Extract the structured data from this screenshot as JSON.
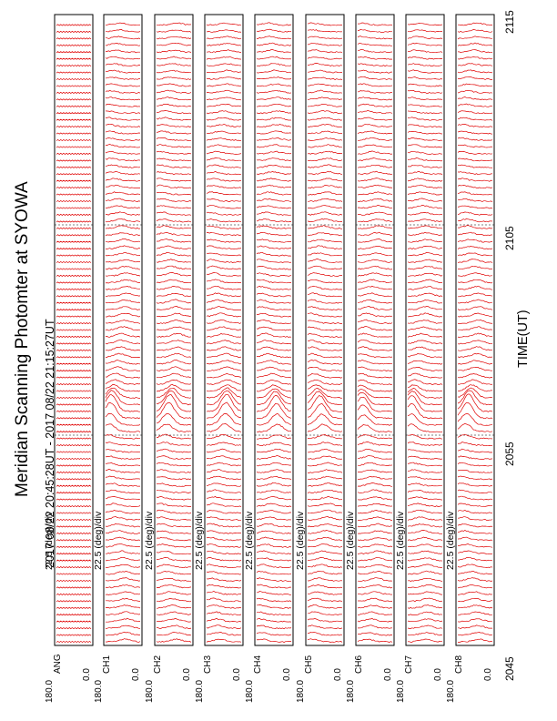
{
  "title": "Meridian Scanning Photomter at SYOWA",
  "subtitle": "2017 08/22 20:45:28UT - 2017 08/22 21:15:27UT",
  "xlabel": "TIME(UT)",
  "x_ticks": [
    "2045",
    "2055",
    "2105",
    "2115"
  ],
  "colors": {
    "trace": "#e00000",
    "frame": "#000000",
    "background": "#ffffff"
  },
  "panels": [
    {
      "channel": "ANG",
      "scale": "22.5 (deg)/div",
      "ymax": "180.0",
      "ymin": "0.0"
    },
    {
      "channel": "CH1",
      "scale": "22.5 (deg)/div",
      "ymax": "180.0",
      "ymin": "0.0"
    },
    {
      "channel": "CH2",
      "scale": "22.5 (deg)/div",
      "ymax": "180.0",
      "ymin": "0.0"
    },
    {
      "channel": "CH3",
      "scale": "22.5 (deg)/div",
      "ymax": "180.0",
      "ymin": "0.0"
    },
    {
      "channel": "CH4",
      "scale": "22.5 (deg)/div",
      "ymax": "180.0",
      "ymin": "0.0"
    },
    {
      "channel": "CH5",
      "scale": "22.5 (deg)/div",
      "ymax": "180.0",
      "ymin": "0.0"
    },
    {
      "channel": "CH6",
      "scale": "22.5 (deg)/div",
      "ymax": "180.0",
      "ymin": "0.0"
    },
    {
      "channel": "CH7",
      "scale": "22.5 (deg)/div",
      "ymax": "180.0",
      "ymin": "0.0"
    },
    {
      "channel": "CH8",
      "scale": "22.5 (deg)/div",
      "ymax": "180.0",
      "ymin": "0.0"
    }
  ],
  "chart_data": {
    "type": "line",
    "title": "Meridian Scanning Photomter at SYOWA",
    "subtitle": "2017 08/22 20:45:28UT - 2017 08/22 21:15:27UT",
    "xlabel": "TIME(UT)",
    "x_ticks": [
      "2045",
      "2055",
      "2105",
      "2115"
    ],
    "xlim": [
      "2045",
      "2115"
    ],
    "ylim": [
      0,
      180
    ],
    "y_unit": "deg",
    "scale_per_div": 22.5,
    "series": [
      {
        "name": "ANG",
        "event_times": [
          "2055"
        ],
        "event_intensity": [
          0.3
        ]
      },
      {
        "name": "CH1",
        "event_times": [
          "2055",
          "2058"
        ],
        "event_intensity": [
          1.0,
          0.4
        ]
      },
      {
        "name": "CH2",
        "event_times": [
          "2055",
          "2058"
        ],
        "event_intensity": [
          1.0,
          0.5
        ]
      },
      {
        "name": "CH3",
        "event_times": [
          "2055",
          "2058"
        ],
        "event_intensity": [
          1.0,
          0.5
        ]
      },
      {
        "name": "CH4",
        "event_times": [
          "2055",
          "2058"
        ],
        "event_intensity": [
          0.9,
          0.4
        ]
      },
      {
        "name": "CH5",
        "event_times": [
          "2055",
          "2100"
        ],
        "event_intensity": [
          0.9,
          0.5
        ]
      },
      {
        "name": "CH6",
        "event_times": [
          "2055",
          "2058"
        ],
        "event_intensity": [
          0.8,
          0.3
        ]
      },
      {
        "name": "CH7",
        "event_times": [
          "2055",
          "2058"
        ],
        "event_intensity": [
          0.9,
          0.4
        ]
      },
      {
        "name": "CH8",
        "event_times": [
          "2055",
          "2058"
        ],
        "event_intensity": [
          1.0,
          0.5
        ]
      }
    ]
  }
}
